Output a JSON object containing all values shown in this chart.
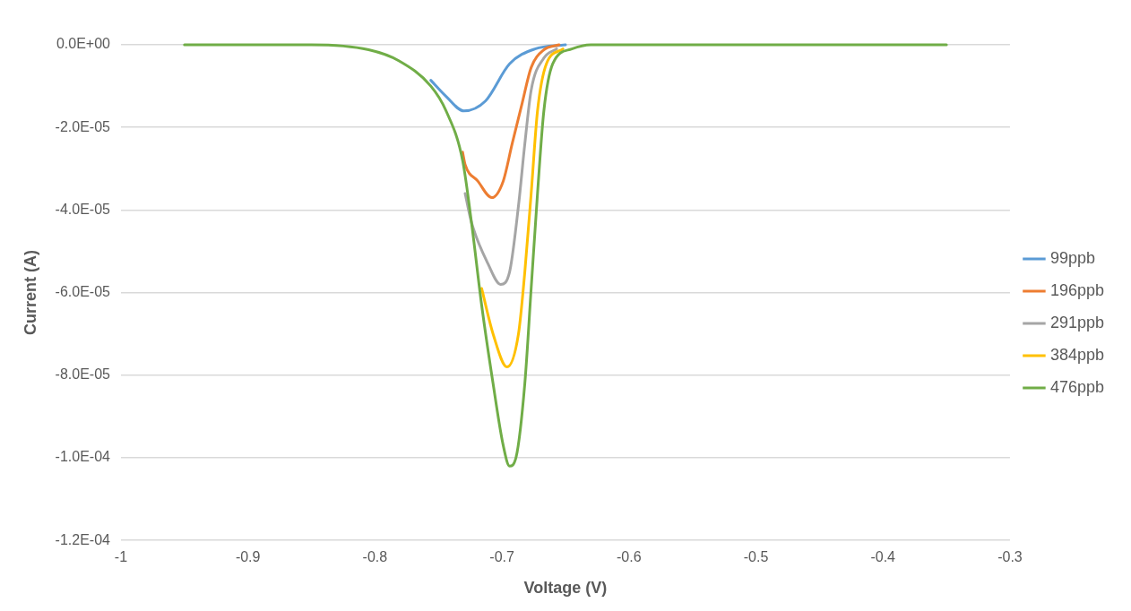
{
  "chart_data": {
    "type": "line",
    "xlabel": "Voltage (V)",
    "ylabel": "Current (A)",
    "xlim": [
      -1,
      -0.3
    ],
    "xticks": [
      -1,
      -0.9,
      -0.8,
      -0.7,
      -0.6,
      -0.5,
      -0.4,
      -0.3
    ],
    "ylim": [
      -0.00012,
      0
    ],
    "yticks": [
      {
        "value": 0,
        "label": "0.0E+00"
      },
      {
        "value": -2e-05,
        "label": "-2.0E-05"
      },
      {
        "value": -4e-05,
        "label": "-4.0E-05"
      },
      {
        "value": -6e-05,
        "label": "-6.0E-05"
      },
      {
        "value": -8e-05,
        "label": "-8.0E-05"
      },
      {
        "value": -0.0001,
        "label": "-1.0E-04"
      },
      {
        "value": -0.00012,
        "label": "-1.2E-04"
      }
    ],
    "grid": "y",
    "legend": "right",
    "marker": "none",
    "line_style": "solid",
    "series": [
      {
        "name": "99ppb",
        "color": "#5b9bd5",
        "x": [
          -0.756,
          -0.744,
          -0.73,
          -0.713,
          -0.694,
          -0.674,
          -0.65
        ],
        "values": [
          -8.6e-06,
          -1.25e-05,
          -1.6e-05,
          -1.36e-05,
          -4.6e-06,
          -1e-06,
          0
        ]
      },
      {
        "name": "196ppb",
        "color": "#ed7d31",
        "x": [
          -0.731,
          -0.729,
          -0.719,
          -0.708,
          -0.699,
          -0.692,
          -0.684,
          -0.677,
          -0.667,
          -0.655
        ],
        "values": [
          -2.6e-05,
          -2.9e-05,
          -3.3e-05,
          -3.7e-05,
          -3.3e-05,
          -2.4e-05,
          -1.4e-05,
          -5.5e-06,
          -1.2e-06,
          0
        ]
      },
      {
        "name": "291ppb",
        "color": "#a5a5a5",
        "x": [
          -0.729,
          -0.724,
          -0.711,
          -0.701,
          -0.694,
          -0.687,
          -0.682,
          -0.677,
          -0.667,
          -0.657
        ],
        "values": [
          -3.6e-05,
          -4.3e-05,
          -5.3e-05,
          -5.8e-05,
          -5.5e-05,
          -3.9e-05,
          -2.4e-05,
          -1.1e-05,
          -3.2e-06,
          -1e-06
        ]
      },
      {
        "name": "384ppb",
        "color": "#ffc000",
        "x": [
          -0.716,
          -0.707,
          -0.696,
          -0.687,
          -0.682,
          -0.677,
          -0.672,
          -0.665,
          -0.652
        ],
        "values": [
          -5.9e-05,
          -7e-05,
          -7.8e-05,
          -7e-05,
          -5.5e-05,
          -3.6e-05,
          -1.6e-05,
          -4.6e-06,
          -1e-06
        ]
      },
      {
        "name": "476ppb",
        "color": "#70ad47",
        "x": [
          -0.95,
          -0.85,
          -0.805,
          -0.781,
          -0.756,
          -0.744,
          -0.731,
          -0.724,
          -0.716,
          -0.707,
          -0.699,
          -0.694,
          -0.689,
          -0.682,
          -0.677,
          -0.672,
          -0.667,
          -0.66,
          -0.645,
          -0.63,
          -0.35
        ],
        "values": [
          0,
          0,
          -1.2e-06,
          -3.9e-06,
          -1e-05,
          -1.6e-05,
          -2.8e-05,
          -4.3e-05,
          -6.3e-05,
          -8.2e-05,
          -9.7e-05,
          -0.000102,
          -0.0001,
          -8.2e-05,
          -5.9e-05,
          -3.6e-05,
          -1.6e-05,
          -4.6e-06,
          -1e-06,
          0,
          0
        ]
      }
    ]
  }
}
